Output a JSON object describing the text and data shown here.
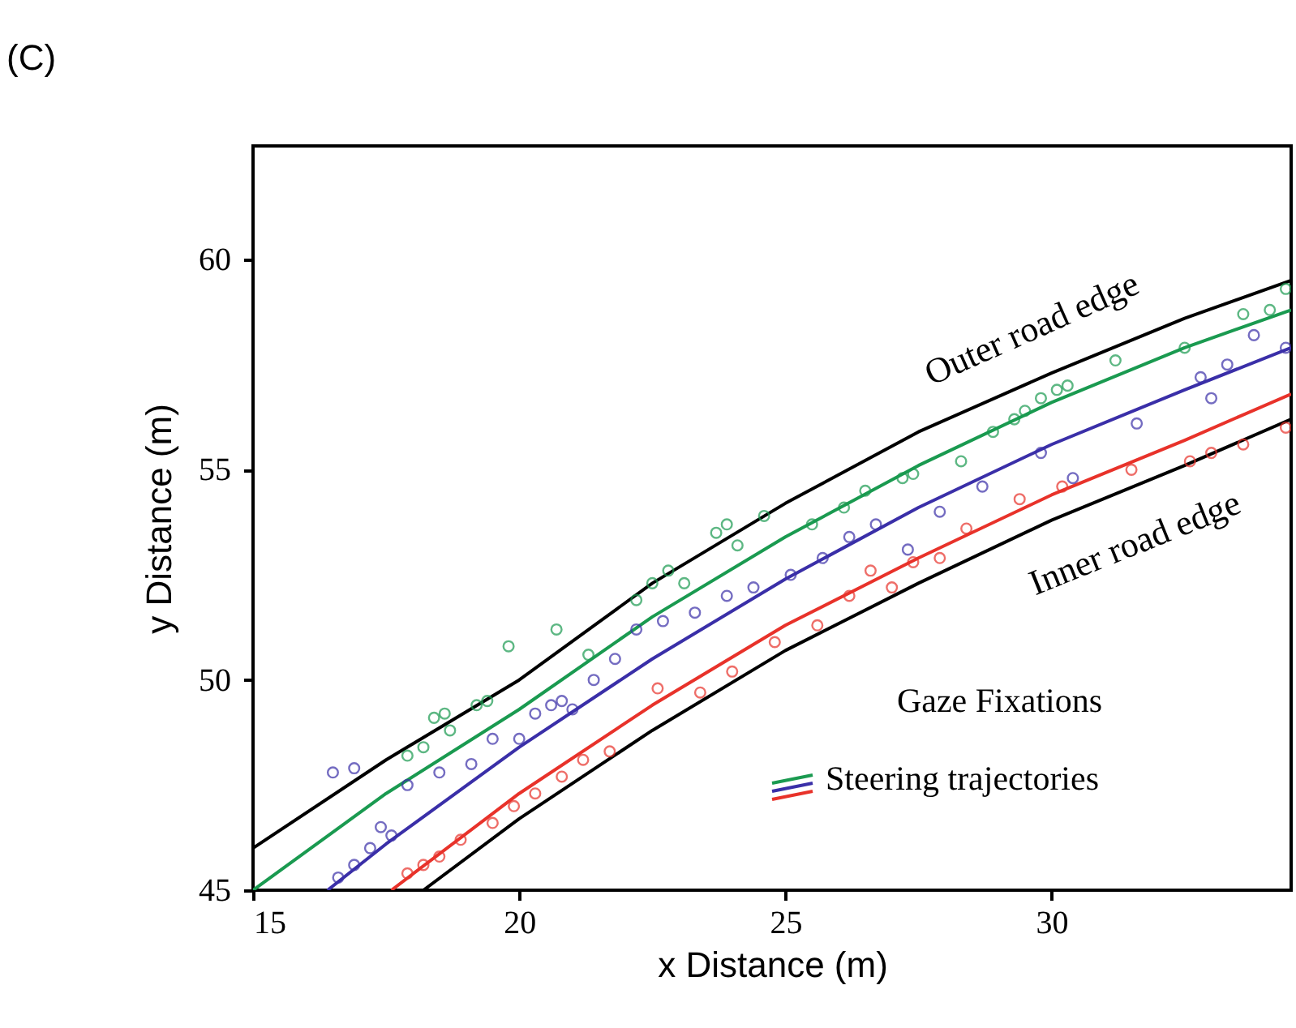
{
  "chart_data": {
    "type": "scatter",
    "title": "(C)",
    "xlabel": "x Distance (m)",
    "ylabel": "y Distance (m)",
    "xlim": [
      15,
      34.5
    ],
    "ylim": [
      45,
      62.7
    ],
    "xticks": [
      15,
      20,
      25,
      30
    ],
    "yticks": [
      45,
      50,
      55,
      60
    ],
    "grid": false,
    "marker": "circle",
    "annotations": [
      "Gaze Fixations",
      "Steering trajectories",
      {
        "text": "Outer road edge",
        "x": 30,
        "y": 57.3
      },
      {
        "text": "Inner road edge",
        "x": 31.2,
        "y": 54.4
      }
    ],
    "series": [
      {
        "type": "line",
        "marker": "none",
        "color": "#000000",
        "x": [
          15,
          17.5,
          20,
          22.5,
          25,
          27.5,
          30,
          32.5,
          34.5
        ],
        "values": [
          46.0,
          48.1,
          50.0,
          52.3,
          54.2,
          55.9,
          57.3,
          58.6,
          59.5
        ]
      },
      {
        "type": "line",
        "marker": "none",
        "color": "#000000",
        "x": [
          18.2,
          20,
          22.5,
          25,
          27.5,
          30,
          32.5,
          34.5
        ],
        "values": [
          45.0,
          46.7,
          48.8,
          50.7,
          52.3,
          53.8,
          55.1,
          56.2
        ]
      },
      {
        "type": "line",
        "marker": "none",
        "color": "#1a9a50",
        "x": [
          15,
          17.5,
          20,
          22.5,
          25,
          27.5,
          30,
          32.5,
          34.5
        ],
        "values": [
          45.0,
          47.3,
          49.3,
          51.5,
          53.4,
          55.1,
          56.6,
          57.9,
          58.8
        ]
      },
      {
        "type": "line",
        "marker": "none",
        "color": "#3a2fa8",
        "x": [
          16.4,
          17.5,
          20,
          22.5,
          25,
          27.5,
          30,
          32.5,
          34.5
        ],
        "values": [
          45.0,
          46.1,
          48.4,
          50.5,
          52.4,
          54.1,
          55.6,
          56.9,
          57.9
        ]
      },
      {
        "type": "line",
        "marker": "none",
        "color": "#e8322a",
        "x": [
          17.6,
          20,
          22.5,
          25,
          27.5,
          30,
          32.5,
          34.5
        ],
        "values": [
          45.0,
          47.3,
          49.4,
          51.3,
          52.9,
          54.4,
          55.7,
          56.8
        ]
      },
      {
        "color": "#1a9a50",
        "x": [
          17.9,
          18.2,
          18.4,
          18.6,
          18.7,
          19.2,
          19.4,
          19.8,
          20.7,
          21.3,
          22.2,
          22.5,
          22.8,
          23.1,
          23.7,
          23.9,
          24.1,
          24.6,
          25.5,
          26.1,
          26.5,
          27.2,
          27.4,
          28.3,
          28.9,
          29.3,
          29.5,
          29.8,
          30.1,
          30.3,
          31.2,
          32.5,
          33.6,
          34.1,
          34.4
        ],
        "values": [
          48.2,
          48.4,
          49.1,
          49.2,
          48.8,
          49.4,
          49.5,
          50.8,
          51.2,
          50.6,
          51.9,
          52.3,
          52.6,
          52.3,
          53.5,
          53.7,
          53.2,
          53.9,
          53.7,
          54.1,
          54.5,
          54.8,
          54.9,
          55.2,
          55.9,
          56.2,
          56.4,
          56.7,
          56.9,
          57.0,
          57.6,
          57.9,
          58.7,
          58.8,
          59.3
        ]
      },
      {
        "color": "#3a2fa8",
        "x": [
          16.5,
          16.9,
          16.6,
          16.9,
          17.2,
          17.4,
          17.6,
          17.9,
          18.5,
          19.1,
          19.5,
          20.0,
          20.3,
          20.6,
          20.8,
          21.0,
          21.4,
          21.8,
          22.2,
          22.7,
          23.3,
          23.9,
          24.4,
          25.1,
          25.7,
          26.2,
          26.7,
          27.3,
          27.9,
          28.7,
          29.8,
          30.4,
          31.6,
          32.8,
          33.0,
          33.3,
          33.8,
          34.4
        ],
        "values": [
          47.8,
          47.9,
          45.3,
          45.6,
          46.0,
          46.5,
          46.3,
          47.5,
          47.8,
          48.0,
          48.6,
          48.6,
          49.2,
          49.4,
          49.5,
          49.3,
          50.0,
          50.5,
          51.2,
          51.4,
          51.6,
          52.0,
          52.2,
          52.5,
          52.9,
          53.4,
          53.7,
          53.1,
          54.0,
          54.6,
          55.4,
          54.8,
          56.1,
          57.2,
          56.7,
          57.5,
          58.2,
          57.9
        ]
      },
      {
        "color": "#e8322a",
        "x": [
          17.9,
          18.2,
          18.5,
          18.9,
          19.5,
          19.9,
          20.3,
          20.8,
          21.2,
          21.7,
          22.6,
          23.4,
          24.0,
          24.8,
          25.6,
          26.2,
          26.6,
          27.0,
          27.4,
          27.9,
          28.4,
          29.4,
          30.2,
          31.5,
          32.6,
          33.0,
          33.6,
          34.4
        ],
        "values": [
          45.4,
          45.6,
          45.8,
          46.2,
          46.6,
          47.0,
          47.3,
          47.7,
          48.1,
          48.3,
          49.8,
          49.7,
          50.2,
          50.9,
          51.3,
          52.0,
          52.6,
          52.2,
          52.8,
          52.9,
          53.6,
          54.3,
          54.6,
          55.0,
          55.2,
          55.4,
          55.6,
          56.0
        ]
      }
    ]
  }
}
